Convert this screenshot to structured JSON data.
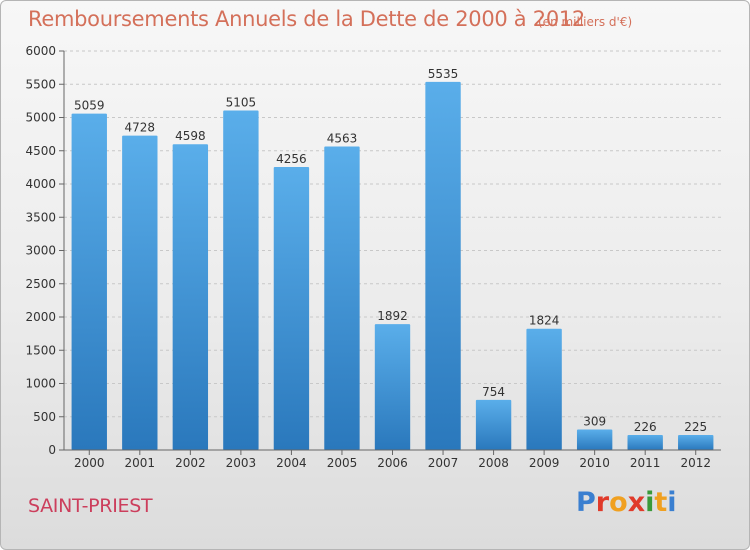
{
  "header": {
    "title": "Remboursements Annuels de la Dette de 2000 à 2012",
    "unit": "(en milliers d'€)"
  },
  "footer": {
    "commune": "SAINT-PRIEST",
    "logo_text": "Proxiti",
    "logo_colors": [
      "#3a7fd0",
      "#e03a2a",
      "#f0a020",
      "#e03a2a",
      "#3a9a3a",
      "#f0a020",
      "#3a7fd0"
    ]
  },
  "colors": {
    "bar_top": "#5aaeea",
    "bar_bottom": "#2a78bc",
    "title": "#d4705a",
    "commune": "#cc3e5c"
  },
  "chart_data": {
    "type": "bar",
    "categories": [
      "2000",
      "2001",
      "2002",
      "2003",
      "2004",
      "2005",
      "2006",
      "2007",
      "2008",
      "2009",
      "2010",
      "2011",
      "2012"
    ],
    "values": [
      5059,
      4728,
      4598,
      5105,
      4256,
      4563,
      1892,
      5535,
      754,
      1824,
      309,
      226,
      225
    ],
    "data_labels": [
      "5059",
      "4728",
      "4598",
      "5105",
      "4256",
      "4563",
      "1892",
      "5535",
      "754",
      "1824",
      "309",
      "226",
      "225"
    ],
    "yticks": [
      "0",
      "500",
      "1000",
      "1500",
      "2000",
      "2500",
      "3000",
      "3500",
      "4000",
      "4500",
      "5000",
      "5500",
      "6000"
    ],
    "ylim": [
      0,
      6000
    ],
    "grid": true,
    "title": "Remboursements Annuels de la Dette de 2000 à 2012",
    "xlabel": "",
    "ylabel": ""
  }
}
